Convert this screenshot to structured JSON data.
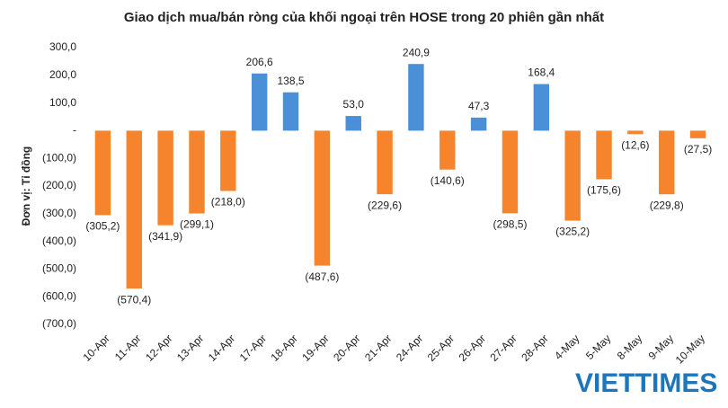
{
  "chart_data": {
    "type": "bar",
    "title": "Giao dịch mua/bán ròng của khối ngoại trên HOSE trong 20 phiên gần nhất",
    "y_label": "Đơn vị: Tỉ đồng",
    "watermark": "VIETTIMES",
    "categories": [
      "10-Apr",
      "11-Apr",
      "12-Apr",
      "13-Apr",
      "14-Apr",
      "17-Apr",
      "18-Apr",
      "19-Apr",
      "20-Apr",
      "21-Apr",
      "24-Apr",
      "25-Apr",
      "26-Apr",
      "27-Apr",
      "28-Apr",
      "4-May",
      "5-May",
      "8-May",
      "9-May",
      "10-May"
    ],
    "values": [
      -305.2,
      -570.4,
      -341.9,
      -299.1,
      -218.0,
      206.6,
      138.5,
      -487.6,
      53.0,
      -229.6,
      240.9,
      -140.6,
      47.3,
      -298.5,
      168.4,
      -325.2,
      -175.6,
      -12.6,
      -229.8,
      -27.5
    ],
    "value_labels": [
      "(305,2)",
      "(570,4)",
      "(341,9)",
      "(299,1)",
      "(218,0)",
      "206,6",
      "138,5",
      "(487,6)",
      "53,0",
      "(229,6)",
      "240,9",
      "(140,6)",
      "47,3",
      "(298,5)",
      "168,4",
      "(325,2)",
      "(175,6)",
      "(12,6)",
      "(229,8)",
      "(27,5)"
    ],
    "color_positive": "#4a8fd8",
    "color_negative": "#f5842c",
    "ylim": [
      -700,
      300
    ],
    "yticks": [
      {
        "value": 300,
        "label": "300,0"
      },
      {
        "value": 200,
        "label": "200,0"
      },
      {
        "value": 100,
        "label": "100,0"
      },
      {
        "value": 0,
        "label": "-"
      },
      {
        "value": -100,
        "label": "(100,0)"
      },
      {
        "value": -200,
        "label": "(200,0)"
      },
      {
        "value": -300,
        "label": "(300,0)"
      },
      {
        "value": -400,
        "label": "(400,0)"
      },
      {
        "value": -500,
        "label": "(500,0)"
      },
      {
        "value": -600,
        "label": "(600,0)"
      },
      {
        "value": -700,
        "label": "(700,0)"
      }
    ],
    "grid": false
  }
}
